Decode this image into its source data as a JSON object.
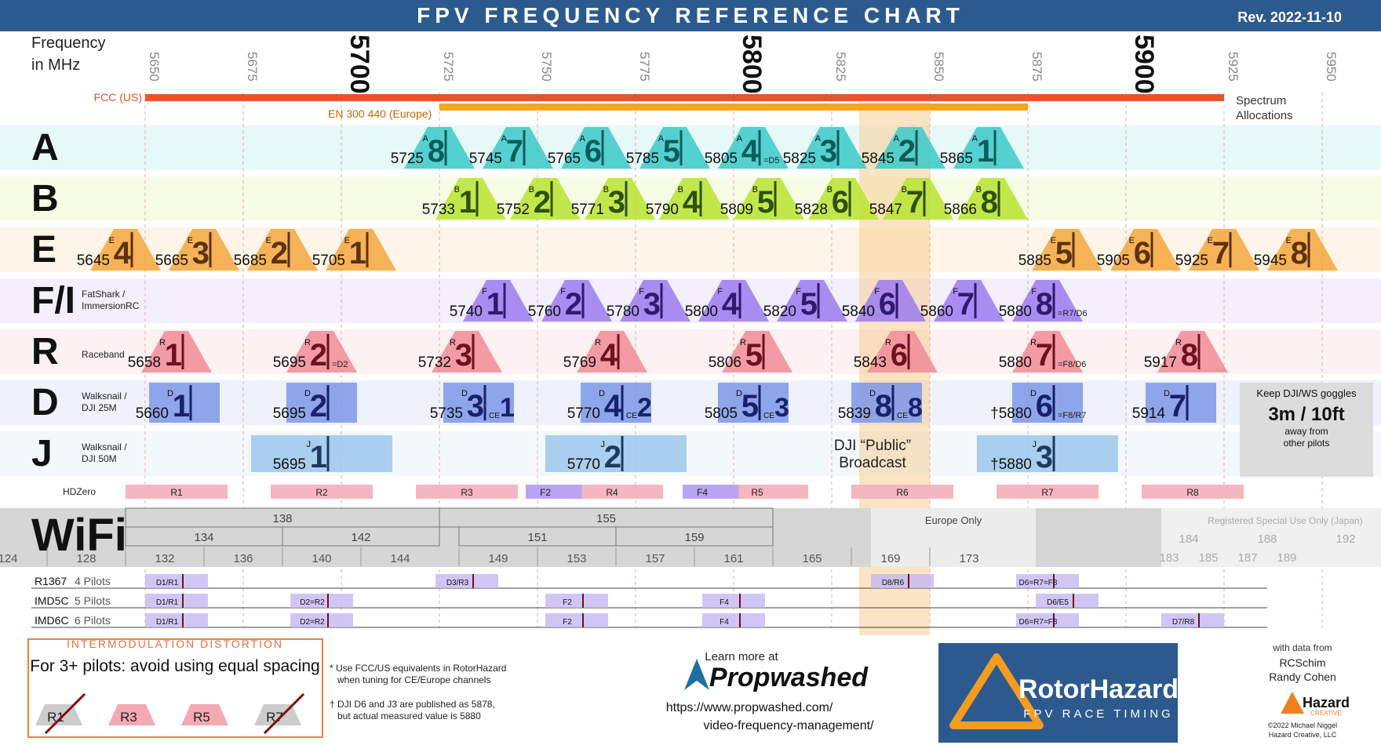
{
  "header": {
    "title": "FPV FREQUENCY REFERENCE CHART",
    "revision": "Rev. 2022-11-10"
  },
  "axis": {
    "label_line1": "Frequency",
    "label_line2": "in MHz",
    "ticks": [
      5650,
      5675,
      5700,
      5725,
      5750,
      5775,
      5800,
      5825,
      5850,
      5875,
      5900,
      5925,
      5950
    ],
    "major_ticks": [
      5700,
      5800,
      5900
    ],
    "range": [
      5640,
      5960
    ]
  },
  "allocations": {
    "label_line1": "Spectrum",
    "label_line2": "Allocations",
    "items": [
      {
        "label": "FCC (US)",
        "from": 5650,
        "to": 5925,
        "color": "#e8542a"
      },
      {
        "label": "EN 300 440 (Europe)",
        "from": 5725,
        "to": 5875,
        "color": "#f4a622"
      }
    ]
  },
  "public_broadcast": {
    "from": 5832,
    "to": 5850,
    "line1": "DJI “Public”",
    "line2": "Broadcast"
  },
  "chart_data": {
    "type": "band-chart",
    "title": "FPV FREQUENCY REFERENCE CHART",
    "bands": [
      {
        "letter": "A",
        "name": "",
        "color": "#39c9c9",
        "text": "#0d5c5c",
        "channels": [
          {
            "ch": "8",
            "freq": 5725
          },
          {
            "ch": "7",
            "freq": 5745
          },
          {
            "ch": "6",
            "freq": 5765
          },
          {
            "ch": "5",
            "freq": 5785
          },
          {
            "ch": "4",
            "freq": 5805,
            "note": "=D5"
          },
          {
            "ch": "3",
            "freq": 5825
          },
          {
            "ch": "2",
            "freq": 5845
          },
          {
            "ch": "1",
            "freq": 5865
          }
        ]
      },
      {
        "letter": "B",
        "name": "",
        "color": "#b8e32f",
        "text": "#2f5010",
        "channels": [
          {
            "ch": "1",
            "freq": 5733
          },
          {
            "ch": "2",
            "freq": 5752
          },
          {
            "ch": "3",
            "freq": 5771
          },
          {
            "ch": "4",
            "freq": 5790
          },
          {
            "ch": "5",
            "freq": 5809
          },
          {
            "ch": "6",
            "freq": 5828
          },
          {
            "ch": "7",
            "freq": 5847
          },
          {
            "ch": "8",
            "freq": 5866
          }
        ]
      },
      {
        "letter": "E",
        "name": "",
        "color": "#f5a63c",
        "text": "#5c3210",
        "channels": [
          {
            "ch": "4",
            "freq": 5645
          },
          {
            "ch": "3",
            "freq": 5665
          },
          {
            "ch": "2",
            "freq": 5685
          },
          {
            "ch": "1",
            "freq": 5705
          },
          {
            "ch": "5",
            "freq": 5885
          },
          {
            "ch": "6",
            "freq": 5905
          },
          {
            "ch": "7",
            "freq": 5925
          },
          {
            "ch": "8",
            "freq": 5945
          }
        ]
      },
      {
        "letter": "F/I",
        "name": "FatShark / ImmersionRC",
        "color": "#9b7af0",
        "text": "#2f1a70",
        "channels": [
          {
            "ch": "1",
            "freq": 5740
          },
          {
            "ch": "2",
            "freq": 5760
          },
          {
            "ch": "3",
            "freq": 5780
          },
          {
            "ch": "4",
            "freq": 5800
          },
          {
            "ch": "5",
            "freq": 5820
          },
          {
            "ch": "6",
            "freq": 5840
          },
          {
            "ch": "7",
            "freq": 5860
          },
          {
            "ch": "8",
            "freq": 5880,
            "note": "=R7/D6"
          }
        ]
      },
      {
        "letter": "R",
        "name": "Raceband",
        "color": "#f08c96",
        "text": "#6e1020",
        "channels": [
          {
            "ch": "1",
            "freq": 5658
          },
          {
            "ch": "2",
            "freq": 5695,
            "note": "=D2"
          },
          {
            "ch": "3",
            "freq": 5732
          },
          {
            "ch": "4",
            "freq": 5769
          },
          {
            "ch": "5",
            "freq": 5806
          },
          {
            "ch": "6",
            "freq": 5843
          },
          {
            "ch": "7",
            "freq": 5880,
            "note": "=F8/D6"
          },
          {
            "ch": "8",
            "freq": 5917
          }
        ]
      },
      {
        "letter": "D",
        "name": "Walksnail / DJI 25M",
        "color": "#7c96e8",
        "text": "#16226a",
        "shape": "box",
        "width": 18,
        "channels": [
          {
            "ch": "1",
            "freq": 5660
          },
          {
            "ch": "2",
            "freq": 5695
          },
          {
            "ch": "3",
            "freq": 5735,
            "ce": "1"
          },
          {
            "ch": "4",
            "freq": 5770,
            "ce": "2"
          },
          {
            "ch": "5",
            "freq": 5805,
            "ce": "3"
          },
          {
            "ch": "8",
            "freq": 5839,
            "ce": "8"
          },
          {
            "ch": "6",
            "freq": 5880,
            "dagger": "†",
            "note": "=F8/R7"
          },
          {
            "ch": "7",
            "freq": 5914
          }
        ]
      },
      {
        "letter": "J",
        "name": "Walksnail / DJI 50M",
        "color": "#9cc7ea",
        "text": "#1d3a5e",
        "shape": "box",
        "width": 36,
        "channels": [
          {
            "ch": "1",
            "freq": 5695
          },
          {
            "ch": "2",
            "freq": 5770
          },
          {
            "ch": "3",
            "freq": 5880,
            "dagger": "†"
          }
        ]
      }
    ],
    "hdzero": {
      "label": "HDZero",
      "channels": [
        {
          "label": "R1",
          "from": 5645,
          "to": 5671
        },
        {
          "label": "R2",
          "from": 5682,
          "to": 5708
        },
        {
          "label": "R3",
          "from": 5719,
          "to": 5745
        },
        {
          "label": "R4",
          "from": 5756,
          "to": 5782
        },
        {
          "label": "R5",
          "from": 5793,
          "to": 5819
        },
        {
          "label": "R6",
          "from": 5830,
          "to": 5856
        },
        {
          "label": "R7",
          "from": 5867,
          "to": 5893
        },
        {
          "label": "R8",
          "from": 5904,
          "to": 5930
        }
      ],
      "purple": [
        {
          "label": "F2",
          "from": 5747,
          "to": 5773
        },
        {
          "label": "F4",
          "from": 5787,
          "to": 5813
        }
      ]
    },
    "goggles_note": {
      "line1": "Keep DJI/WS goggles",
      "big": "3m / 10ft",
      "line2": "away from",
      "line3": "other pilots"
    }
  },
  "wifi": {
    "label": "WiFi",
    "wide": [
      {
        "label": "138",
        "from": 5650,
        "to": 5730,
        "level": 0
      },
      {
        "label": "155",
        "from": 5730,
        "to": 5815,
        "level": 0
      },
      {
        "label": "134",
        "from": 5650,
        "to": 5690,
        "level": 1
      },
      {
        "label": "142",
        "from": 5690,
        "to": 5730,
        "level": 1
      },
      {
        "label": "151",
        "from": 5735,
        "to": 5775,
        "level": 1
      },
      {
        "label": "159",
        "from": 5775,
        "to": 5815,
        "level": 1
      }
    ],
    "channels": [
      {
        "label": "124",
        "f": 5620
      },
      {
        "label": "128",
        "f": 5640
      },
      {
        "label": "132",
        "f": 5660
      },
      {
        "label": "136",
        "f": 5680
      },
      {
        "label": "140",
        "f": 5700
      },
      {
        "label": "144",
        "f": 5720
      },
      {
        "label": "149",
        "f": 5745
      },
      {
        "label": "153",
        "f": 5765
      },
      {
        "label": "157",
        "f": 5785
      },
      {
        "label": "161",
        "f": 5805
      },
      {
        "label": "165",
        "f": 5825
      },
      {
        "label": "169",
        "f": 5845
      },
      {
        "label": "173",
        "f": 5865
      }
    ],
    "europe_only": "Europe Only",
    "japan": {
      "label": "Registered Special Use Only (Japan)",
      "wide": [
        {
          "label": "184",
          "f": 5920
        },
        {
          "label": "188",
          "f": 5940
        },
        {
          "label": "192",
          "f": 5960
        }
      ],
      "narrow": [
        {
          "label": "183",
          "f": 5915
        },
        {
          "label": "185",
          "f": 5925
        },
        {
          "label": "187",
          "f": 5935
        },
        {
          "label": "189",
          "f": 5945
        }
      ]
    }
  },
  "imd_rows": [
    {
      "name": "R1367",
      "pilots": "4 Pilots",
      "marks": [
        {
          "label": "D1/R1",
          "f": 5658
        },
        {
          "label": "D3/R3",
          "f": 5732
        },
        {
          "label": "D8/R6",
          "f": 5843
        },
        {
          "label": "D6=R7=F8",
          "f": 5880
        }
      ]
    },
    {
      "name": "IMD5C",
      "pilots": "5 Pilots",
      "marks": [
        {
          "label": "D1/R1",
          "f": 5658
        },
        {
          "label": "D2=R2",
          "f": 5695
        },
        {
          "label": "F2",
          "f": 5760
        },
        {
          "label": "F4",
          "f": 5800
        },
        {
          "label": "D6/E5",
          "f": 5885
        }
      ]
    },
    {
      "name": "IMD6C",
      "pilots": "6 Pilots",
      "marks": [
        {
          "label": "D1/R1",
          "f": 5658
        },
        {
          "label": "D2=R2",
          "f": 5695
        },
        {
          "label": "F2",
          "f": 5760
        },
        {
          "label": "F4",
          "f": 5800
        },
        {
          "label": "D6=R7=F8",
          "f": 5880
        },
        {
          "label": "D7/R8",
          "f": 5917
        }
      ]
    }
  ],
  "imd_box": {
    "title": "INTERMODULATION DISTORTION",
    "subtitle": "For 3+ pilots: avoid using equal spacing",
    "items": [
      "R1",
      "R3",
      "R5",
      "R7"
    ]
  },
  "notes": {
    "n1_line1": "* Use FCC/US equivalents in RotorHazard",
    "n1_line2": "when tuning for CE/Europe channels",
    "n2_line1": "† DJI D6 and J3 are published as 5878,",
    "n2_line2": "but actual measured value is 5880"
  },
  "propwashed": {
    "learn": "Learn more at",
    "brand": "Propwashed",
    "url1": "https://www.propwashed.com/",
    "url2": "video-frequency-management/"
  },
  "rotorhazard": {
    "brand": "RotorHazard",
    "sub": "FPV RACE TIMING"
  },
  "credits": {
    "with": "with data from",
    "n1": "RCSchim",
    "n2": "Randy Cohen",
    "hazard": "Hazard",
    "creative": "CREATIVE",
    "copy1": "©2022 Michael Niggel",
    "copy2": "Hazard Creative, LLC"
  },
  "colors": {
    "banner": "#2d5a8e",
    "public": "#f8c98a"
  }
}
